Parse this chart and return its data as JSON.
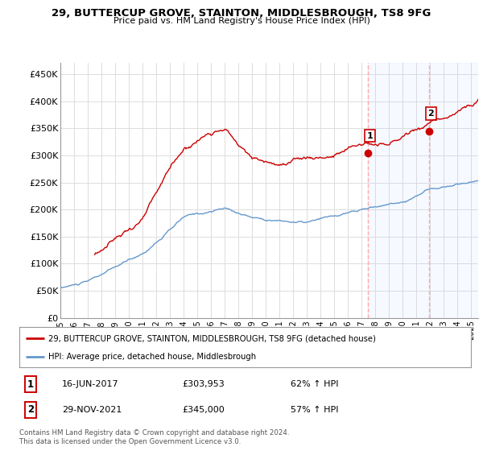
{
  "title": "29, BUTTERCUP GROVE, STAINTON, MIDDLESBROUGH, TS8 9FG",
  "subtitle": "Price paid vs. HM Land Registry's House Price Index (HPI)",
  "legend_line1": "29, BUTTERCUP GROVE, STAINTON, MIDDLESBROUGH, TS8 9FG (detached house)",
  "legend_line2": "HPI: Average price, detached house, Middlesbrough",
  "footnote": "Contains HM Land Registry data © Crown copyright and database right 2024.\nThis data is licensed under the Open Government Licence v3.0.",
  "annotation1_label": "1",
  "annotation1_date": "16-JUN-2017",
  "annotation1_price": "£303,953",
  "annotation1_hpi": "62% ↑ HPI",
  "annotation2_label": "2",
  "annotation2_date": "29-NOV-2021",
  "annotation2_price": "£345,000",
  "annotation2_hpi": "57% ↑ HPI",
  "red_line_color": "#cc0000",
  "blue_line_color": "#6699cc",
  "vline_color": "#ffaaaa",
  "grid_color": "#dddddd",
  "ylim": [
    0,
    470000
  ],
  "yticks": [
    0,
    50000,
    100000,
    150000,
    200000,
    250000,
    300000,
    350000,
    400000,
    450000
  ],
  "ytick_labels": [
    "£0",
    "£50K",
    "£100K",
    "£150K",
    "£200K",
    "£250K",
    "£300K",
    "£350K",
    "£400K",
    "£450K"
  ],
  "purchase1_x": 2017.46,
  "purchase1_y": 303953,
  "purchase2_x": 2021.91,
  "purchase2_y": 345000,
  "xmin": 1995.0,
  "xmax": 2025.5,
  "red_start_year": 1997.5,
  "hpi_seed": 10,
  "red_seed": 99
}
